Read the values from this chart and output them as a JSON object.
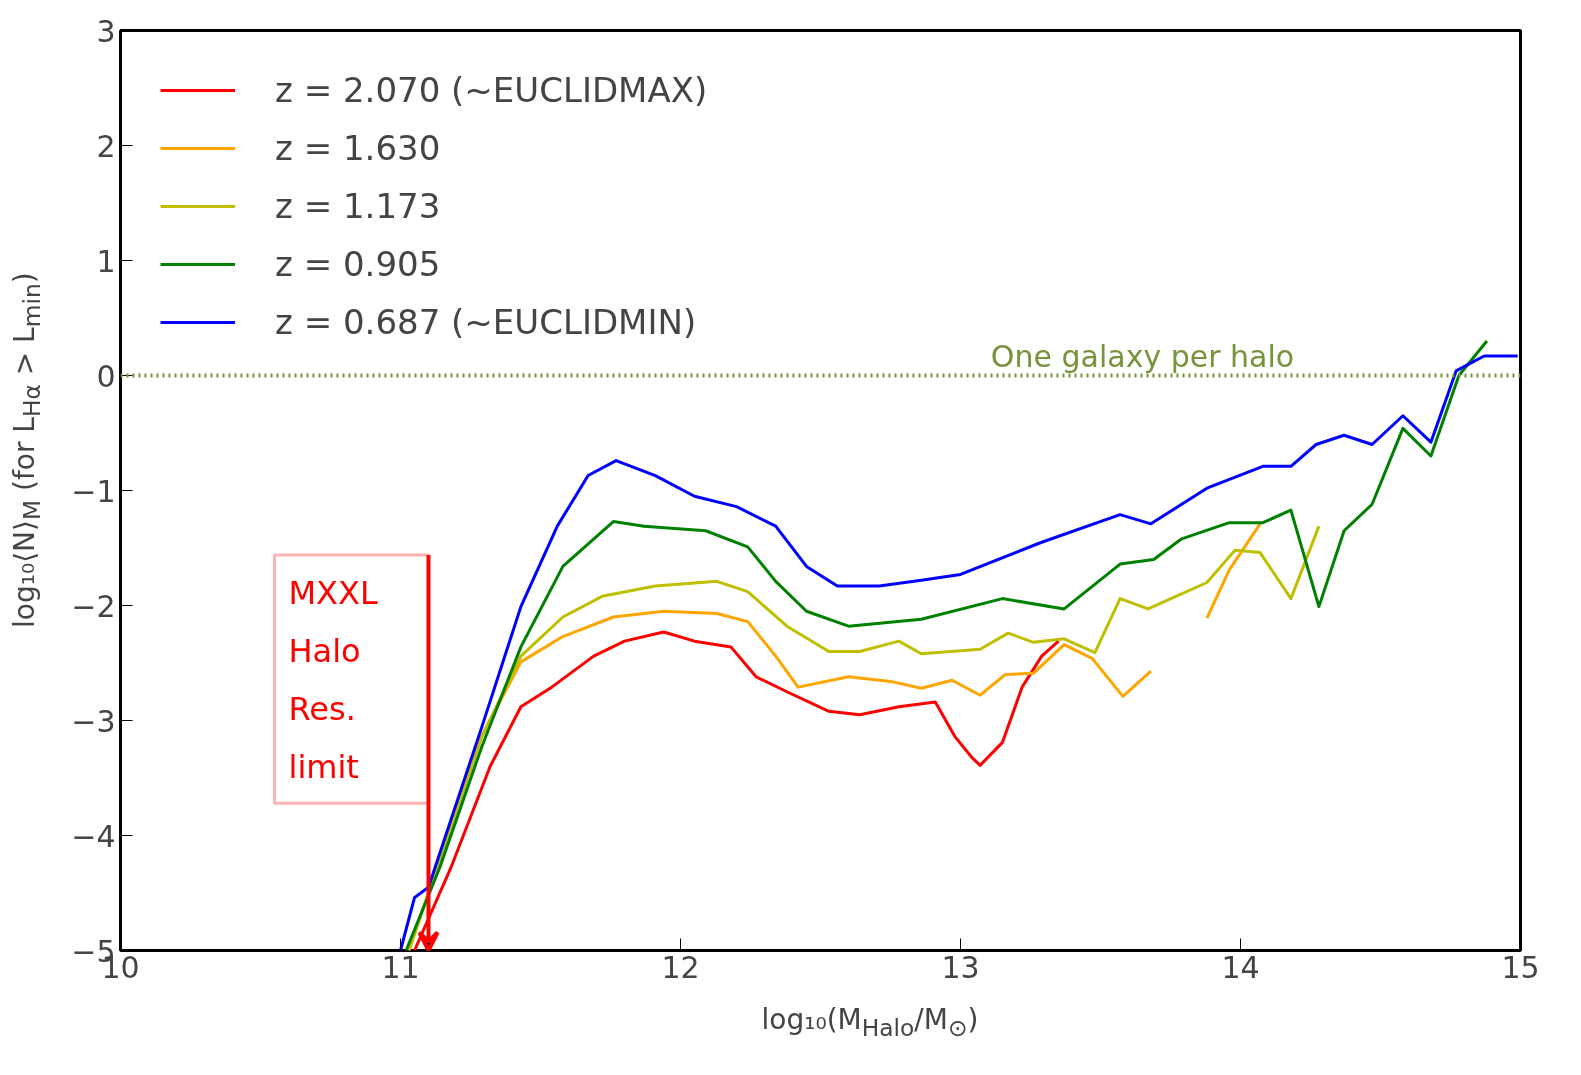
{
  "chart_data": {
    "type": "line",
    "xlabel": "log₁₀(M$_{Halo}$/M$_{⊙}$)",
    "ylabel": "log₁₀⟨N⟩$_{M}$ (for L$_{Hα}$ > L$_{min}$)",
    "xlim": [
      10,
      15
    ],
    "ylim": [
      -5,
      3
    ],
    "xticks": [
      10,
      11,
      12,
      13,
      14,
      15
    ],
    "yticks": [
      {
        "value": -5,
        "label": "−5"
      },
      {
        "value": -4,
        "label": "−4"
      },
      {
        "value": -3,
        "label": "−3"
      },
      {
        "value": -2,
        "label": "−2"
      },
      {
        "value": -1,
        "label": "−1"
      },
      0,
      1,
      2,
      3
    ],
    "grid": false,
    "legend": "top left",
    "marker": "none",
    "line_style": "solid",
    "series": [
      {
        "name": "z = 2.070 (~EUCLIDMAX)",
        "color": "#ff0000",
        "x": [
          11.05,
          11.18,
          11.32,
          11.43,
          11.54,
          11.69,
          11.8,
          11.94,
          12.05,
          12.18,
          12.27,
          12.38,
          12.53,
          12.64,
          12.78,
          12.91,
          12.98,
          13.04,
          13.07,
          13.15,
          13.22,
          13.29,
          13.35
        ],
        "values": [
          -5,
          -4.28,
          -3.4,
          -2.88,
          -2.71,
          -2.44,
          -2.31,
          -2.23,
          -2.31,
          -2.36,
          -2.62,
          -2.75,
          -2.92,
          -2.95,
          -2.88,
          -2.84,
          -3.14,
          -3.32,
          -3.39,
          -3.19,
          -2.71,
          -2.44,
          -2.31
        ]
      },
      {
        "name": "z = 1.630",
        "color": "#ffa500",
        "x": [
          11.03,
          11.29,
          11.43,
          11.58,
          11.76,
          11.94,
          12.13,
          12.24,
          12.34,
          12.42,
          12.6,
          12.75,
          12.86,
          12.97,
          13.07,
          13.16,
          13.26,
          13.37,
          13.47,
          13.58,
          13.68,
          13.78,
          13.88,
          13.96,
          14.07
        ],
        "values": [
          -5,
          -3.14,
          -2.49,
          -2.27,
          -2.1,
          -2.05,
          -2.07,
          -2.14,
          -2.44,
          -2.71,
          -2.62,
          -2.66,
          -2.72,
          -2.65,
          -2.78,
          -2.6,
          -2.59,
          -2.34,
          -2.46,
          -2.79,
          -2.57,
          null,
          -2.11,
          -1.69,
          -1.29
        ]
      },
      {
        "name": "z = 1.173",
        "color": "#bfbf00",
        "x": [
          11.03,
          11.29,
          11.43,
          11.58,
          11.72,
          11.91,
          12.13,
          12.24,
          12.38,
          12.53,
          12.64,
          12.78,
          12.86,
          13.07,
          13.17,
          13.26,
          13.37,
          13.48,
          13.57,
          13.67,
          13.88,
          13.98,
          14.07,
          14.18,
          14.28
        ],
        "values": [
          -5,
          -3.14,
          -2.44,
          -2.1,
          -1.92,
          -1.83,
          -1.79,
          -1.88,
          -2.18,
          -2.4,
          -2.4,
          -2.31,
          -2.42,
          -2.38,
          -2.24,
          -2.32,
          -2.29,
          -2.41,
          -1.94,
          -2.03,
          -1.8,
          -1.52,
          -1.54,
          -1.94,
          -1.31
        ]
      },
      {
        "name": "z = 0.905",
        "color": "#008000",
        "x": [
          11.02,
          11.14,
          11.29,
          11.43,
          11.58,
          11.76,
          11.87,
          12.09,
          12.24,
          12.34,
          12.45,
          12.6,
          12.86,
          13.15,
          13.37,
          13.57,
          13.69,
          13.79,
          13.96,
          14.08,
          14.18,
          14.28,
          14.37,
          14.47,
          14.58,
          14.68,
          14.78,
          14.88
        ],
        "values": [
          -5,
          -4.28,
          -3.23,
          -2.36,
          -1.66,
          -1.27,
          -1.31,
          -1.35,
          -1.49,
          -1.79,
          -2.05,
          -2.18,
          -2.12,
          -1.94,
          -2.03,
          -1.64,
          -1.6,
          -1.42,
          -1.28,
          -1.28,
          -1.17,
          -2.01,
          -1.35,
          -1.12,
          -0.46,
          -0.7,
          0.0,
          0.3
        ]
      },
      {
        "name": "z = 0.687 (~EUCLIDMIN)",
        "color": "#0000ff",
        "x": [
          11.0,
          11.05,
          11.1,
          11.29,
          11.43,
          11.56,
          11.67,
          11.77,
          11.91,
          12.05,
          12.2,
          12.34,
          12.45,
          12.56,
          12.71,
          12.86,
          13.0,
          13.29,
          13.57,
          13.68,
          13.88,
          14.08,
          14.18,
          14.27,
          14.37,
          14.47,
          14.58,
          14.68,
          14.77,
          14.87,
          14.99
        ],
        "values": [
          -5,
          -4.54,
          -4.45,
          -3.06,
          -2.01,
          -1.31,
          -0.87,
          -0.74,
          -0.87,
          -1.05,
          -1.14,
          -1.31,
          -1.66,
          -1.83,
          -1.83,
          -1.78,
          -1.73,
          -1.45,
          -1.21,
          -1.29,
          -0.98,
          -0.79,
          -0.79,
          -0.6,
          -0.52,
          -0.6,
          -0.35,
          -0.58,
          0.04,
          0.17,
          0.17
        ]
      }
    ],
    "ref_lines": [
      {
        "axis": "y",
        "value": 0,
        "label": "One galaxy per halo",
        "color": "#77933c",
        "line_style": "dotted"
      }
    ],
    "annotations": [
      "MXXL\nHalo\nRes.\nlimit"
    ]
  }
}
